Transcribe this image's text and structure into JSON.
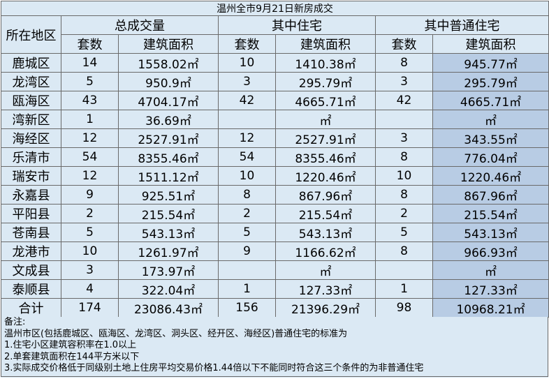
{
  "title": "温州全市9月21日新房成交",
  "header": {
    "region": "所在地区",
    "group_total": "总成交量",
    "group_residential": "其中住宅",
    "group_ordinary": "其中普通住宅",
    "units": "套数",
    "area": "建筑面积"
  },
  "rows": [
    {
      "region": "鹿城区",
      "t_units": "14",
      "t_area": "1558.02㎡",
      "r_units": "10",
      "r_area": "1410.38㎡",
      "o_units": "8",
      "o_area": "945.77㎡"
    },
    {
      "region": "龙湾区",
      "t_units": "5",
      "t_area": "950.9㎡",
      "r_units": "3",
      "r_area": "295.79㎡",
      "o_units": "3",
      "o_area": "295.79㎡"
    },
    {
      "region": "瓯海区",
      "t_units": "43",
      "t_area": "4704.17㎡",
      "r_units": "42",
      "r_area": "4665.71㎡",
      "o_units": "42",
      "o_area": "4665.71㎡"
    },
    {
      "region": "湾新区",
      "t_units": "1",
      "t_area": "36.69㎡",
      "r_units": "",
      "r_area": "㎡",
      "o_units": "",
      "o_area": "㎡"
    },
    {
      "region": "海经区",
      "t_units": "12",
      "t_area": "2527.91㎡",
      "r_units": "12",
      "r_area": "2527.91㎡",
      "o_units": "3",
      "o_area": "343.55㎡"
    },
    {
      "region": "乐清市",
      "t_units": "54",
      "t_area": "8355.46㎡",
      "r_units": "54",
      "r_area": "8355.46㎡",
      "o_units": "8",
      "o_area": "776.04㎡"
    },
    {
      "region": "瑞安市",
      "t_units": "12",
      "t_area": "1511.12㎡",
      "r_units": "10",
      "r_area": "1220.46㎡",
      "o_units": "10",
      "o_area": "1220.46㎡"
    },
    {
      "region": "永嘉县",
      "t_units": "9",
      "t_area": "925.51㎡",
      "r_units": "8",
      "r_area": "867.96㎡",
      "o_units": "8",
      "o_area": "867.96㎡"
    },
    {
      "region": "平阳县",
      "t_units": "2",
      "t_area": "215.54㎡",
      "r_units": "2",
      "r_area": "215.54㎡",
      "o_units": "2",
      "o_area": "215.54㎡"
    },
    {
      "region": "苍南县",
      "t_units": "5",
      "t_area": "543.13㎡",
      "r_units": "5",
      "r_area": "543.13㎡",
      "o_units": "5",
      "o_area": "543.13㎡"
    },
    {
      "region": "龙港市",
      "t_units": "10",
      "t_area": "1261.97㎡",
      "r_units": "9",
      "r_area": "1166.62㎡",
      "o_units": "8",
      "o_area": "966.93㎡"
    },
    {
      "region": "文成县",
      "t_units": "3",
      "t_area": "173.97㎡",
      "r_units": "",
      "r_area": "㎡",
      "o_units": "",
      "o_area": "㎡"
    },
    {
      "region": "泰顺县",
      "t_units": "4",
      "t_area": "322.04㎡",
      "r_units": "1",
      "r_area": "127.33㎡",
      "o_units": "1",
      "o_area": "127.33㎡"
    },
    {
      "region": "合计",
      "t_units": "174",
      "t_area": "23086.43㎡",
      "r_units": "156",
      "r_area": "21396.29㎡",
      "o_units": "98",
      "o_area": "10968.21㎡"
    }
  ],
  "notes": [
    "备注:",
    "温州市区(包括鹿城区、瓯海区、龙湾区、洞头区、经开区、海经区)普通住宅的标准为",
    "1.住宅小区建筑容积率在1.0以上",
    "2.单套建筑面积在144平方米以下",
    "3.实际成交价格低于同级别土地上住房平均交易价格1.44倍以下不能同时符合这三个条件的为非普通住宅"
  ]
}
